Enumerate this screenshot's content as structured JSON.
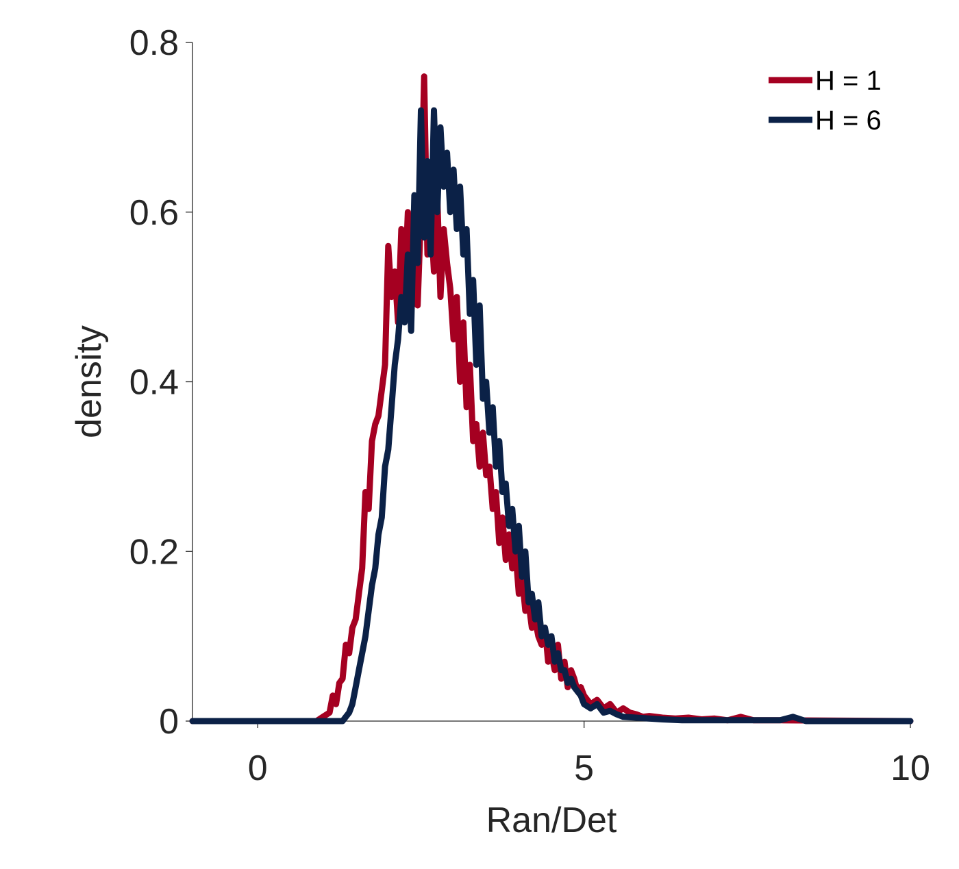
{
  "chart_data": {
    "type": "line",
    "xlabel": "Ran/Det",
    "ylabel": "density",
    "xlim": [
      -1,
      10
    ],
    "ylim": [
      0,
      0.8
    ],
    "x_ticks": [
      0,
      5,
      10
    ],
    "x_tick_labels": [
      "0",
      "5",
      "10"
    ],
    "y_ticks": [
      0,
      0.2,
      0.4,
      0.6,
      0.8
    ],
    "y_tick_labels": [
      "0",
      "0.2",
      "0.4",
      "0.6",
      "0.8"
    ],
    "grid": false,
    "legend_position": "top-right",
    "series": [
      {
        "name": "H = 1",
        "color": "#a50021",
        "x": [
          -1,
          0.9,
          1.0,
          1.1,
          1.15,
          1.2,
          1.25,
          1.3,
          1.35,
          1.4,
          1.45,
          1.5,
          1.55,
          1.6,
          1.65,
          1.7,
          1.75,
          1.8,
          1.85,
          1.9,
          1.95,
          2.0,
          2.05,
          2.1,
          2.15,
          2.2,
          2.25,
          2.3,
          2.35,
          2.4,
          2.45,
          2.5,
          2.55,
          2.6,
          2.65,
          2.7,
          2.75,
          2.8,
          2.85,
          2.9,
          2.95,
          3.0,
          3.05,
          3.1,
          3.15,
          3.2,
          3.25,
          3.3,
          3.35,
          3.4,
          3.45,
          3.5,
          3.55,
          3.6,
          3.65,
          3.7,
          3.75,
          3.8,
          3.85,
          3.9,
          3.95,
          4.0,
          4.05,
          4.1,
          4.15,
          4.2,
          4.25,
          4.3,
          4.35,
          4.4,
          4.45,
          4.5,
          4.55,
          4.6,
          4.65,
          4.7,
          4.75,
          4.8,
          4.85,
          4.9,
          4.95,
          5.0,
          5.1,
          5.2,
          5.3,
          5.4,
          5.5,
          5.6,
          5.7,
          5.8,
          5.9,
          6.0,
          6.2,
          6.4,
          6.6,
          6.8,
          7.0,
          7.2,
          7.4,
          7.6,
          8.0,
          10.0
        ],
        "values": [
          0,
          0,
          0.005,
          0.01,
          0.03,
          0.02,
          0.045,
          0.05,
          0.09,
          0.08,
          0.11,
          0.12,
          0.15,
          0.18,
          0.27,
          0.25,
          0.33,
          0.35,
          0.36,
          0.39,
          0.42,
          0.56,
          0.5,
          0.53,
          0.47,
          0.58,
          0.5,
          0.6,
          0.55,
          0.59,
          0.49,
          0.6,
          0.76,
          0.55,
          0.6,
          0.53,
          0.62,
          0.5,
          0.58,
          0.54,
          0.51,
          0.45,
          0.5,
          0.4,
          0.47,
          0.37,
          0.42,
          0.33,
          0.35,
          0.3,
          0.34,
          0.29,
          0.3,
          0.25,
          0.27,
          0.21,
          0.24,
          0.19,
          0.22,
          0.18,
          0.2,
          0.15,
          0.17,
          0.13,
          0.14,
          0.11,
          0.12,
          0.1,
          0.09,
          0.11,
          0.07,
          0.08,
          0.06,
          0.09,
          0.05,
          0.07,
          0.04,
          0.06,
          0.05,
          0.035,
          0.04,
          0.03,
          0.02,
          0.025,
          0.015,
          0.02,
          0.01,
          0.015,
          0.01,
          0.008,
          0.005,
          0.006,
          0.004,
          0.003,
          0.004,
          0.002,
          0.003,
          0.001,
          0.005,
          0.001,
          0.001,
          0
        ]
      },
      {
        "name": "H = 6",
        "color": "#0b2147",
        "x": [
          -1,
          1.3,
          1.35,
          1.4,
          1.45,
          1.5,
          1.55,
          1.6,
          1.65,
          1.7,
          1.75,
          1.8,
          1.85,
          1.9,
          1.95,
          2.0,
          2.05,
          2.1,
          2.15,
          2.2,
          2.25,
          2.3,
          2.35,
          2.4,
          2.45,
          2.5,
          2.55,
          2.6,
          2.65,
          2.7,
          2.75,
          2.8,
          2.85,
          2.9,
          2.95,
          3.0,
          3.05,
          3.1,
          3.15,
          3.2,
          3.25,
          3.3,
          3.35,
          3.4,
          3.45,
          3.5,
          3.55,
          3.6,
          3.65,
          3.7,
          3.75,
          3.8,
          3.85,
          3.9,
          3.95,
          4.0,
          4.05,
          4.1,
          4.15,
          4.2,
          4.25,
          4.3,
          4.35,
          4.4,
          4.45,
          4.5,
          4.55,
          4.6,
          4.65,
          4.7,
          4.75,
          4.8,
          4.85,
          4.9,
          4.95,
          5.0,
          5.1,
          5.2,
          5.3,
          5.4,
          5.5,
          5.6,
          5.8,
          6.0,
          6.2,
          6.5,
          7.0,
          8.0,
          8.2,
          8.4,
          10.0
        ],
        "values": [
          0,
          0,
          0.005,
          0.01,
          0.02,
          0.04,
          0.06,
          0.08,
          0.1,
          0.13,
          0.16,
          0.18,
          0.22,
          0.24,
          0.3,
          0.32,
          0.37,
          0.42,
          0.45,
          0.5,
          0.47,
          0.55,
          0.46,
          0.62,
          0.54,
          0.72,
          0.57,
          0.66,
          0.55,
          0.72,
          0.6,
          0.7,
          0.63,
          0.67,
          0.6,
          0.65,
          0.58,
          0.63,
          0.55,
          0.58,
          0.48,
          0.52,
          0.42,
          0.49,
          0.38,
          0.4,
          0.34,
          0.37,
          0.3,
          0.33,
          0.27,
          0.28,
          0.23,
          0.25,
          0.2,
          0.23,
          0.17,
          0.2,
          0.14,
          0.15,
          0.12,
          0.14,
          0.1,
          0.11,
          0.09,
          0.1,
          0.07,
          0.08,
          0.06,
          0.06,
          0.045,
          0.05,
          0.04,
          0.035,
          0.03,
          0.02,
          0.015,
          0.02,
          0.01,
          0.012,
          0.008,
          0.005,
          0.004,
          0.003,
          0.002,
          0.001,
          0.001,
          0.001,
          0.005,
          0,
          0
        ]
      }
    ]
  }
}
